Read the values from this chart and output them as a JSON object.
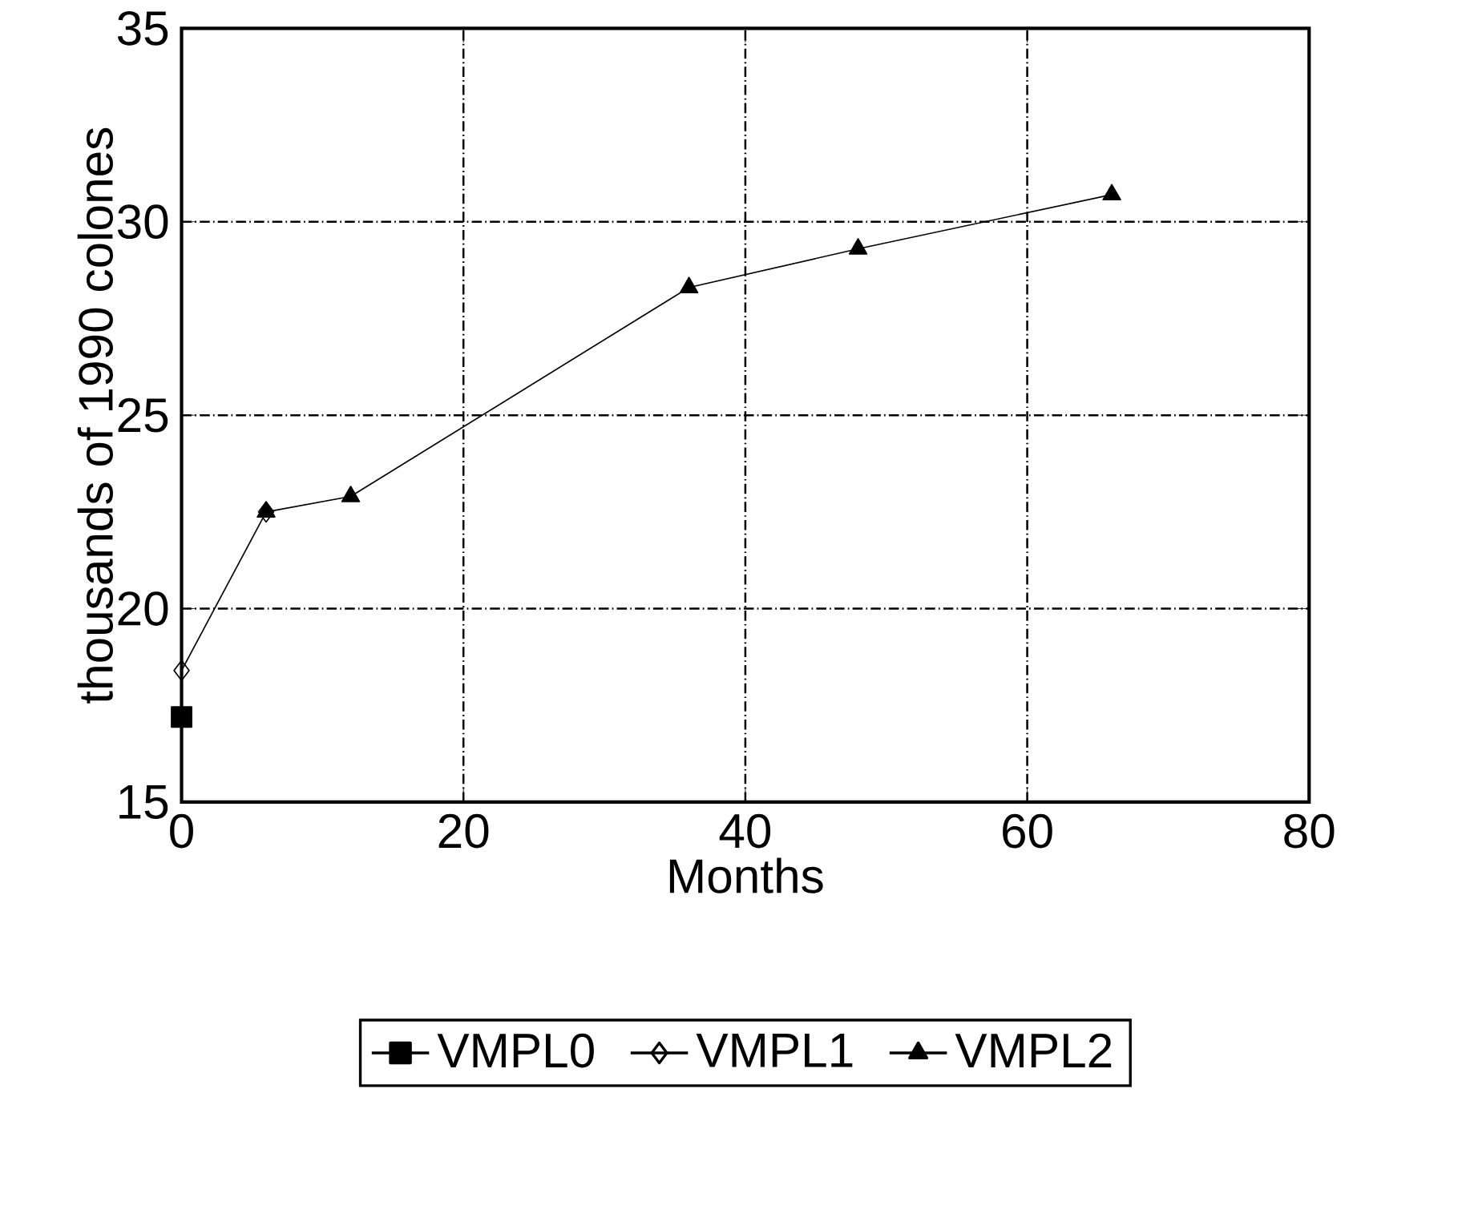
{
  "chart_data": {
    "type": "line",
    "xlabel": "Months",
    "ylabel": "thousands of 1990 colones",
    "xlim": [
      0,
      80
    ],
    "ylim": [
      15,
      35
    ],
    "xticks": [
      0,
      20,
      40,
      60,
      80
    ],
    "yticks": [
      15,
      20,
      25,
      30,
      35
    ],
    "grid": true,
    "legend": "bottom",
    "series": [
      {
        "name": "VMPL0",
        "color": "#000000",
        "marker": "square",
        "x": [
          0
        ],
        "values": [
          17.2
        ]
      },
      {
        "name": "VMPL1",
        "color": "#000000",
        "marker": "diamond",
        "x": [
          0,
          6
        ],
        "values": [
          18.4,
          22.5
        ]
      },
      {
        "name": "VMPL2",
        "color": "#000000",
        "marker": "triangle",
        "x": [
          6,
          12,
          36,
          48,
          66
        ],
        "values": [
          22.5,
          22.9,
          28.3,
          29.3,
          30.7
        ]
      }
    ]
  }
}
